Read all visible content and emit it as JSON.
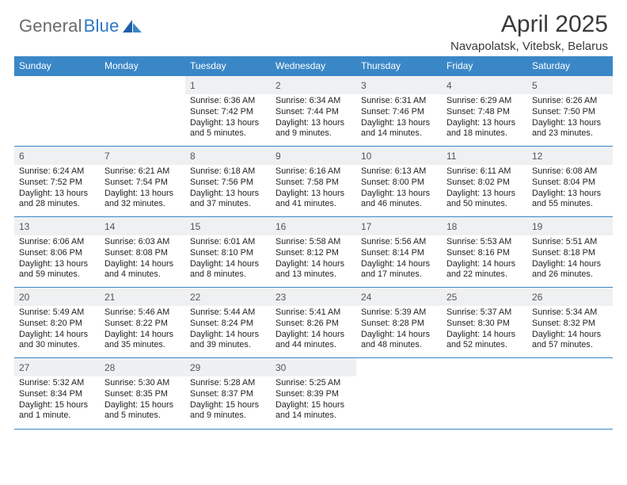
{
  "logo": {
    "text_left": "General",
    "text_right": "Blue"
  },
  "title": "April 2025",
  "location": "Navapolatsk, Vitebsk, Belarus",
  "colors": {
    "header_blue": "#3a87c7",
    "daynum_bg": "#eef0f2",
    "logo_grey": "#6a6a6a",
    "logo_blue": "#2f78c3"
  },
  "dayHeaders": [
    "Sunday",
    "Monday",
    "Tuesday",
    "Wednesday",
    "Thursday",
    "Friday",
    "Saturday"
  ],
  "weeks": [
    [
      null,
      null,
      {
        "n": "1",
        "sr": "Sunrise: 6:36 AM",
        "ss": "Sunset: 7:42 PM",
        "dl1": "Daylight: 13 hours",
        "dl2": "and 5 minutes."
      },
      {
        "n": "2",
        "sr": "Sunrise: 6:34 AM",
        "ss": "Sunset: 7:44 PM",
        "dl1": "Daylight: 13 hours",
        "dl2": "and 9 minutes."
      },
      {
        "n": "3",
        "sr": "Sunrise: 6:31 AM",
        "ss": "Sunset: 7:46 PM",
        "dl1": "Daylight: 13 hours",
        "dl2": "and 14 minutes."
      },
      {
        "n": "4",
        "sr": "Sunrise: 6:29 AM",
        "ss": "Sunset: 7:48 PM",
        "dl1": "Daylight: 13 hours",
        "dl2": "and 18 minutes."
      },
      {
        "n": "5",
        "sr": "Sunrise: 6:26 AM",
        "ss": "Sunset: 7:50 PM",
        "dl1": "Daylight: 13 hours",
        "dl2": "and 23 minutes."
      }
    ],
    [
      {
        "n": "6",
        "sr": "Sunrise: 6:24 AM",
        "ss": "Sunset: 7:52 PM",
        "dl1": "Daylight: 13 hours",
        "dl2": "and 28 minutes."
      },
      {
        "n": "7",
        "sr": "Sunrise: 6:21 AM",
        "ss": "Sunset: 7:54 PM",
        "dl1": "Daylight: 13 hours",
        "dl2": "and 32 minutes."
      },
      {
        "n": "8",
        "sr": "Sunrise: 6:18 AM",
        "ss": "Sunset: 7:56 PM",
        "dl1": "Daylight: 13 hours",
        "dl2": "and 37 minutes."
      },
      {
        "n": "9",
        "sr": "Sunrise: 6:16 AM",
        "ss": "Sunset: 7:58 PM",
        "dl1": "Daylight: 13 hours",
        "dl2": "and 41 minutes."
      },
      {
        "n": "10",
        "sr": "Sunrise: 6:13 AM",
        "ss": "Sunset: 8:00 PM",
        "dl1": "Daylight: 13 hours",
        "dl2": "and 46 minutes."
      },
      {
        "n": "11",
        "sr": "Sunrise: 6:11 AM",
        "ss": "Sunset: 8:02 PM",
        "dl1": "Daylight: 13 hours",
        "dl2": "and 50 minutes."
      },
      {
        "n": "12",
        "sr": "Sunrise: 6:08 AM",
        "ss": "Sunset: 8:04 PM",
        "dl1": "Daylight: 13 hours",
        "dl2": "and 55 minutes."
      }
    ],
    [
      {
        "n": "13",
        "sr": "Sunrise: 6:06 AM",
        "ss": "Sunset: 8:06 PM",
        "dl1": "Daylight: 13 hours",
        "dl2": "and 59 minutes."
      },
      {
        "n": "14",
        "sr": "Sunrise: 6:03 AM",
        "ss": "Sunset: 8:08 PM",
        "dl1": "Daylight: 14 hours",
        "dl2": "and 4 minutes."
      },
      {
        "n": "15",
        "sr": "Sunrise: 6:01 AM",
        "ss": "Sunset: 8:10 PM",
        "dl1": "Daylight: 14 hours",
        "dl2": "and 8 minutes."
      },
      {
        "n": "16",
        "sr": "Sunrise: 5:58 AM",
        "ss": "Sunset: 8:12 PM",
        "dl1": "Daylight: 14 hours",
        "dl2": "and 13 minutes."
      },
      {
        "n": "17",
        "sr": "Sunrise: 5:56 AM",
        "ss": "Sunset: 8:14 PM",
        "dl1": "Daylight: 14 hours",
        "dl2": "and 17 minutes."
      },
      {
        "n": "18",
        "sr": "Sunrise: 5:53 AM",
        "ss": "Sunset: 8:16 PM",
        "dl1": "Daylight: 14 hours",
        "dl2": "and 22 minutes."
      },
      {
        "n": "19",
        "sr": "Sunrise: 5:51 AM",
        "ss": "Sunset: 8:18 PM",
        "dl1": "Daylight: 14 hours",
        "dl2": "and 26 minutes."
      }
    ],
    [
      {
        "n": "20",
        "sr": "Sunrise: 5:49 AM",
        "ss": "Sunset: 8:20 PM",
        "dl1": "Daylight: 14 hours",
        "dl2": "and 30 minutes."
      },
      {
        "n": "21",
        "sr": "Sunrise: 5:46 AM",
        "ss": "Sunset: 8:22 PM",
        "dl1": "Daylight: 14 hours",
        "dl2": "and 35 minutes."
      },
      {
        "n": "22",
        "sr": "Sunrise: 5:44 AM",
        "ss": "Sunset: 8:24 PM",
        "dl1": "Daylight: 14 hours",
        "dl2": "and 39 minutes."
      },
      {
        "n": "23",
        "sr": "Sunrise: 5:41 AM",
        "ss": "Sunset: 8:26 PM",
        "dl1": "Daylight: 14 hours",
        "dl2": "and 44 minutes."
      },
      {
        "n": "24",
        "sr": "Sunrise: 5:39 AM",
        "ss": "Sunset: 8:28 PM",
        "dl1": "Daylight: 14 hours",
        "dl2": "and 48 minutes."
      },
      {
        "n": "25",
        "sr": "Sunrise: 5:37 AM",
        "ss": "Sunset: 8:30 PM",
        "dl1": "Daylight: 14 hours",
        "dl2": "and 52 minutes."
      },
      {
        "n": "26",
        "sr": "Sunrise: 5:34 AM",
        "ss": "Sunset: 8:32 PM",
        "dl1": "Daylight: 14 hours",
        "dl2": "and 57 minutes."
      }
    ],
    [
      {
        "n": "27",
        "sr": "Sunrise: 5:32 AM",
        "ss": "Sunset: 8:34 PM",
        "dl1": "Daylight: 15 hours",
        "dl2": "and 1 minute."
      },
      {
        "n": "28",
        "sr": "Sunrise: 5:30 AM",
        "ss": "Sunset: 8:35 PM",
        "dl1": "Daylight: 15 hours",
        "dl2": "and 5 minutes."
      },
      {
        "n": "29",
        "sr": "Sunrise: 5:28 AM",
        "ss": "Sunset: 8:37 PM",
        "dl1": "Daylight: 15 hours",
        "dl2": "and 9 minutes."
      },
      {
        "n": "30",
        "sr": "Sunrise: 5:25 AM",
        "ss": "Sunset: 8:39 PM",
        "dl1": "Daylight: 15 hours",
        "dl2": "and 14 minutes."
      },
      null,
      null,
      null
    ]
  ]
}
